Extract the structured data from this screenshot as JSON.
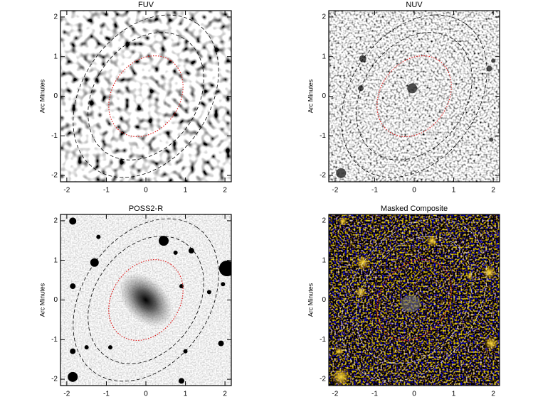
{
  "panels": [
    {
      "title": "FUV",
      "ylabel": "Arc Minutes",
      "xlim": [
        -2.16,
        2.16
      ],
      "ylim": [
        -2.16,
        2.16
      ],
      "xticks": [
        -2,
        -1,
        0,
        1,
        2
      ],
      "yticks": [
        -2,
        -1,
        0,
        1,
        2
      ]
    },
    {
      "title": "NUV",
      "ylabel": "Arc Minutes",
      "xlim": [
        -2.16,
        2.16
      ],
      "ylim": [
        -2.16,
        2.16
      ],
      "xticks": [
        -2,
        -1,
        0,
        1,
        2
      ],
      "yticks": [
        -2,
        -1,
        0,
        1,
        2
      ]
    },
    {
      "title": "POSS2-R",
      "ylabel": "Arc Minutes",
      "xlim": [
        -2.16,
        2.16
      ],
      "ylim": [
        -2.16,
        2.16
      ],
      "xticks": [
        -2,
        -1,
        0,
        1,
        2
      ],
      "yticks": [
        -2,
        -1,
        0,
        1,
        2
      ]
    },
    {
      "title": "Masked Composite",
      "ylabel": "Arc Minutes",
      "xlim": [
        -2.16,
        2.16
      ],
      "ylim": [
        -2.16,
        2.16
      ],
      "xticks": [
        -2,
        -1,
        0,
        1,
        2
      ],
      "yticks": [
        -2,
        -1,
        0,
        1,
        2
      ]
    }
  ]
}
